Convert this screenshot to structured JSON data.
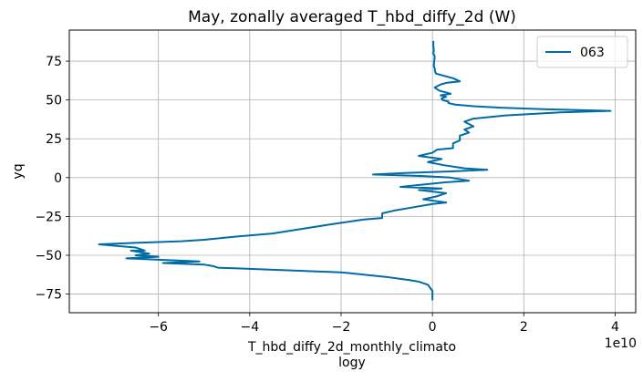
{
  "chart_data": {
    "type": "line",
    "title": "May, zonally averaged T_hbd_diffy_2d (W)",
    "xlabel_line1": "T_hbd_diffy_2d_monthly_climato",
    "xlabel_line2": "logy",
    "ylabel": "yq",
    "x_offset_text": "1e10",
    "x_scale": 10000000000,
    "xlim": [
      -7.95,
      4.45
    ],
    "ylim": [
      -87,
      95
    ],
    "xticks": [
      -6,
      -4,
      -2,
      0,
      2,
      4
    ],
    "yticks": [
      -75,
      -50,
      -25,
      0,
      25,
      50,
      75
    ],
    "grid": true,
    "legend_position": "upper right",
    "color": "#006BA4",
    "series": [
      {
        "name": "063",
        "x": [
          0.02,
          0.02,
          0.03,
          0.02,
          0.05,
          0.04,
          0.03,
          0.05,
          0.06,
          0.08,
          0.2,
          0.45,
          0.6,
          0.3,
          0.18,
          0.05,
          0.15,
          0.4,
          0.18,
          0.3,
          0.2,
          0.22,
          0.35,
          0.35,
          0.5,
          0.9,
          1.5,
          2.5,
          3.9,
          2.8,
          1.6,
          0.9,
          0.7,
          0.9,
          0.7,
          0.8,
          0.6,
          0.6,
          0.45,
          0.45,
          0.1,
          0.0,
          -0.3,
          0.2,
          -0.1,
          0.25,
          0.7,
          1.2,
          0.4,
          -0.6,
          -1.3,
          -0.2,
          0.4,
          0.8,
          0.3,
          -0.7,
          0.2,
          -0.3,
          0.3,
          0.1,
          -0.2,
          0.3,
          0.0,
          -0.4,
          -0.8,
          -1.1,
          -1.1,
          -1.5,
          -2.2,
          -3.5,
          -4.3,
          -5.0,
          -5.5,
          -6.5,
          -7.3,
          -6.5,
          -6.3,
          -6.6,
          -6.2,
          -6.5,
          -6.0,
          -6.7,
          -5.1,
          -5.9,
          -5.0,
          -4.8,
          -4.7,
          -2.0,
          -1.0,
          -0.5,
          -0.3,
          -0.1,
          -0.05,
          0.0,
          0.0,
          0.0
        ],
        "y": [
          88,
          85,
          82,
          80,
          78,
          75,
          72,
          70,
          68,
          67,
          66,
          64,
          62,
          61,
          60,
          58,
          56,
          54,
          53,
          52,
          51,
          50,
          49,
          48,
          47,
          46,
          45,
          44,
          43,
          42,
          40,
          38,
          36,
          33,
          31,
          29,
          27,
          24,
          22,
          19,
          18,
          16,
          14,
          12,
          10,
          8,
          6,
          5,
          4,
          3,
          2,
          1,
          0,
          -2,
          -3,
          -6,
          -7,
          -8,
          -10,
          -12,
          -14,
          -16,
          -17,
          -19,
          -21,
          -23,
          -26,
          -27,
          -30,
          -36,
          -38,
          -40,
          -41,
          -42,
          -43,
          -45,
          -47,
          -47,
          -49,
          -50,
          -51,
          -52,
          -54,
          -55,
          -56,
          -57,
          -58,
          -61,
          -64,
          -66,
          -67,
          -69,
          -71,
          -73,
          -76,
          -79
        ]
      }
    ]
  }
}
